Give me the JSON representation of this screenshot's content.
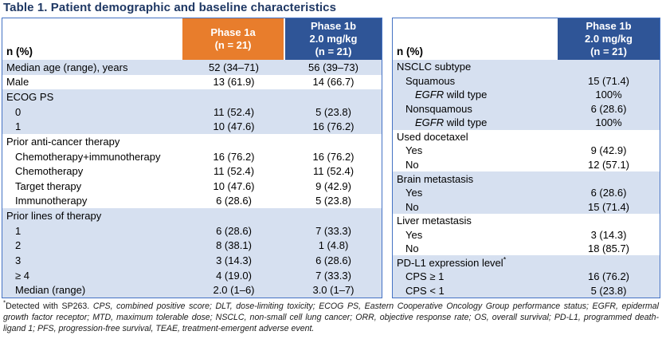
{
  "title": "Table 1. Patient demographic and baseline characteristics",
  "colors": {
    "title_navy": "#1F3864",
    "header_orange": "#E87D2C",
    "header_blue": "#2F5597",
    "row_light_blue": "#D6E0F0",
    "table_border_blue": "#4472C4"
  },
  "left_table": {
    "header": {
      "label": "n (%)",
      "col1": "Phase 1a\n(n = 21)",
      "col2": "Phase 1b\n2.0 mg/kg\n(n = 21)"
    },
    "rows": [
      {
        "label": "Median age (range), years",
        "indent": 0,
        "shade": "blue",
        "values": [
          "52 (34–71)",
          "56 (39–73)"
        ]
      },
      {
        "label": "Male",
        "indent": 0,
        "shade": "white",
        "values": [
          "13 (61.9)",
          "14 (66.7)"
        ]
      },
      {
        "label": "ECOG PS",
        "indent": 0,
        "shade": "blue",
        "values": [
          "",
          ""
        ]
      },
      {
        "label": "0",
        "indent": 1,
        "shade": "blue",
        "values": [
          "11 (52.4)",
          "5 (23.8)"
        ]
      },
      {
        "label": "1",
        "indent": 1,
        "shade": "blue",
        "values": [
          "10 (47.6)",
          "16 (76.2)"
        ]
      },
      {
        "label": "Prior anti-cancer therapy",
        "indent": 0,
        "shade": "white",
        "values": [
          "",
          ""
        ]
      },
      {
        "label": "Chemotherapy+immunotherapy",
        "indent": 1,
        "shade": "white",
        "values": [
          "16 (76.2)",
          "16 (76.2)"
        ]
      },
      {
        "label": "Chemotherapy",
        "indent": 1,
        "shade": "white",
        "values": [
          "11 (52.4)",
          "11 (52.4)"
        ]
      },
      {
        "label": "Target therapy",
        "indent": 1,
        "shade": "white",
        "values": [
          "10 (47.6)",
          "9 (42.9)"
        ]
      },
      {
        "label": "Immunotherapy",
        "indent": 1,
        "shade": "white",
        "values": [
          "6 (28.6)",
          "5 (23.8)"
        ]
      },
      {
        "label": "Prior lines of therapy",
        "indent": 0,
        "shade": "blue",
        "values": [
          "",
          ""
        ]
      },
      {
        "label": "1",
        "indent": 1,
        "shade": "blue",
        "values": [
          "6 (28.6)",
          "7 (33.3)"
        ]
      },
      {
        "label": "2",
        "indent": 1,
        "shade": "blue",
        "values": [
          "8 (38.1)",
          "1 (4.8)"
        ]
      },
      {
        "label": "3",
        "indent": 1,
        "shade": "blue",
        "values": [
          "3 (14.3)",
          "6 (28.6)"
        ]
      },
      {
        "label": "≥ 4",
        "indent": 1,
        "shade": "blue",
        "values": [
          "4 (19.0)",
          "7 (33.3)"
        ]
      },
      {
        "label": "Median (range)",
        "indent": 1,
        "shade": "blue",
        "values": [
          "2.0 (1–6)",
          "3.0 (1–7)"
        ]
      }
    ]
  },
  "right_table": {
    "header": {
      "label": "n (%)",
      "col1": "Phase 1b\n2.0 mg/kg\n(n = 21)"
    },
    "rows": [
      {
        "label": "NSCLC subtype",
        "indent": 0,
        "shade": "blue",
        "values": [
          ""
        ]
      },
      {
        "label": "Squamous",
        "indent": 1,
        "shade": "blue",
        "values": [
          "15 (71.4)"
        ]
      },
      {
        "label": " wild type",
        "italic_prefix": "EGFR",
        "indent": 2,
        "shade": "blue",
        "values": [
          "100%"
        ]
      },
      {
        "label": "Nonsquamous",
        "indent": 1,
        "shade": "blue",
        "values": [
          "6 (28.6)"
        ]
      },
      {
        "label": " wild type",
        "italic_prefix": "EGFR",
        "indent": 2,
        "shade": "blue",
        "values": [
          "100%"
        ]
      },
      {
        "label": "Used docetaxel",
        "indent": 0,
        "shade": "white",
        "values": [
          ""
        ]
      },
      {
        "label": "Yes",
        "indent": 1,
        "shade": "white",
        "values": [
          "9 (42.9)"
        ]
      },
      {
        "label": "No",
        "indent": 1,
        "shade": "white",
        "values": [
          "12 (57.1)"
        ]
      },
      {
        "label": "Brain metastasis",
        "indent": 0,
        "shade": "blue",
        "values": [
          ""
        ]
      },
      {
        "label": "Yes",
        "indent": 1,
        "shade": "blue",
        "values": [
          "6 (28.6)"
        ]
      },
      {
        "label": "No",
        "indent": 1,
        "shade": "blue",
        "values": [
          "15 (71.4)"
        ]
      },
      {
        "label": "Liver metastasis",
        "indent": 0,
        "shade": "white",
        "values": [
          ""
        ]
      },
      {
        "label": "Yes",
        "indent": 1,
        "shade": "white",
        "values": [
          "3 (14.3)"
        ]
      },
      {
        "label": "No",
        "indent": 1,
        "shade": "white",
        "values": [
          "18 (85.7)"
        ]
      },
      {
        "label": "PD-L1 expression level",
        "sup": "*",
        "indent": 0,
        "shade": "blue",
        "values": [
          ""
        ]
      },
      {
        "label": "CPS ≥ 1",
        "indent": 1,
        "shade": "blue",
        "values": [
          "16 (76.2)"
        ]
      },
      {
        "label": "CPS < 1",
        "indent": 1,
        "shade": "blue",
        "values": [
          "5 (23.8)"
        ]
      }
    ]
  },
  "footnote": {
    "marker": "*",
    "lead": "Detected with SP263. ",
    "abbrev": "CPS, combined positive score; DLT, dose-limiting toxicity; ECOG PS, Eastern Cooperative Oncology Group performance status; EGFR, epidermal growth factor receptor; MTD, maximum tolerable dose; NSCLC, non-small cell lung cancer; ORR, objective response rate; OS, overall survival; PD-L1, programmed death-ligand 1; PFS, progression-free survival, TEAE, treatment-emergent adverse event."
  }
}
